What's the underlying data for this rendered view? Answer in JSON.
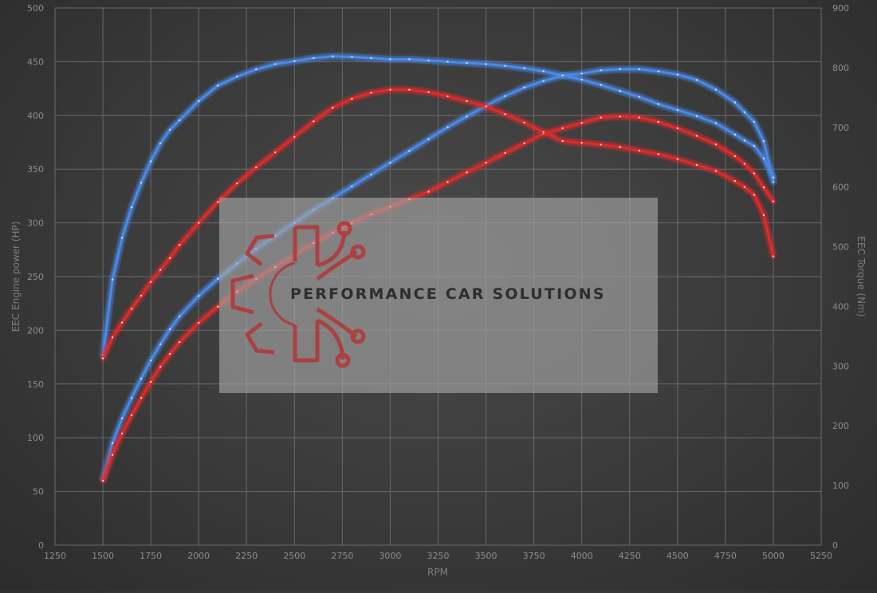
{
  "chart_data": {
    "type": "line",
    "xlabel": "RPM",
    "ylabel_left": "EEC Engine power (HP)",
    "ylabel_right": "EEC Torque (Nm)",
    "xlim": [
      1250,
      5250
    ],
    "ylim_left": [
      0,
      500
    ],
    "ylim_right": [
      0,
      900
    ],
    "x_ticks": [
      1250,
      1500,
      1750,
      2000,
      2250,
      2500,
      2750,
      3000,
      3250,
      3500,
      3750,
      4000,
      4250,
      4500,
      4750,
      5000,
      5250
    ],
    "y_ticks_left": [
      0,
      50,
      100,
      150,
      200,
      250,
      300,
      350,
      400,
      450,
      500
    ],
    "y_ticks_right": [
      0,
      100,
      200,
      300,
      400,
      500,
      600,
      700,
      800,
      900
    ],
    "grid": true,
    "series": [
      {
        "axis": "left",
        "color": "#4a8ae8",
        "x": [
          1500,
          1550,
          1600,
          1650,
          1700,
          1750,
          1800,
          1850,
          1900,
          2000,
          2100,
          2200,
          2300,
          2400,
          2500,
          2600,
          2700,
          2800,
          2900,
          3000,
          3100,
          3200,
          3300,
          3400,
          3500,
          3600,
          3700,
          3800,
          3900,
          4000,
          4100,
          4200,
          4300,
          4400,
          4500,
          4600,
          4700,
          4800,
          4850,
          4900,
          4950,
          5000
        ],
        "y": [
          62,
          95,
          118,
          137,
          155,
          172,
          187,
          201,
          213,
          232,
          248,
          262,
          276,
          288,
          300,
          312,
          323,
          334,
          345,
          356,
          367,
          378,
          389,
          399,
          409,
          418,
          426,
          432,
          437,
          439,
          442,
          443,
          443,
          441,
          438,
          433,
          424,
          412,
          403,
          394,
          376,
          338
        ]
      },
      {
        "axis": "left",
        "color": "#e02a2a",
        "x": [
          1500,
          1550,
          1600,
          1650,
          1700,
          1750,
          1800,
          1850,
          1900,
          2000,
          2100,
          2200,
          2300,
          2400,
          2500,
          2600,
          2700,
          2800,
          2900,
          3000,
          3100,
          3200,
          3300,
          3400,
          3500,
          3600,
          3700,
          3800,
          3900,
          4000,
          4100,
          4200,
          4300,
          4400,
          4500,
          4600,
          4700,
          4800,
          4850,
          4900,
          4950,
          5000
        ],
        "y": [
          60,
          84,
          104,
          121,
          137,
          152,
          166,
          178,
          189,
          207,
          222,
          236,
          248,
          259,
          270,
          281,
          291,
          300,
          308,
          315,
          322,
          329,
          338,
          347,
          356,
          365,
          374,
          383,
          388,
          393,
          398,
          399,
          398,
          394,
          388,
          381,
          373,
          362,
          355,
          346,
          333,
          320
        ]
      },
      {
        "axis": "right",
        "color": "#4a8ae8",
        "x": [
          1500,
          1550,
          1600,
          1650,
          1700,
          1750,
          1800,
          1850,
          1900,
          2000,
          2100,
          2200,
          2300,
          2400,
          2500,
          2600,
          2700,
          2800,
          2900,
          3000,
          3100,
          3200,
          3300,
          3400,
          3500,
          3600,
          3700,
          3800,
          3900,
          4000,
          4100,
          4200,
          4300,
          4400,
          4500,
          4600,
          4700,
          4800,
          4850,
          4900,
          4950,
          5000
        ],
        "y": [
          318,
          445,
          515,
          566,
          607,
          643,
          673,
          696,
          712,
          744,
          770,
          785,
          797,
          806,
          811,
          816,
          819,
          818,
          816,
          814,
          814,
          812,
          810,
          808,
          806,
          803,
          799,
          794,
          787,
          780,
          771,
          761,
          751,
          739,
          729,
          719,
          707,
          688,
          678,
          669,
          648,
          616
        ]
      },
      {
        "axis": "right",
        "color": "#e02a2a",
        "x": [
          1500,
          1550,
          1600,
          1650,
          1700,
          1750,
          1800,
          1850,
          1900,
          2000,
          2100,
          2200,
          2300,
          2400,
          2500,
          2600,
          2700,
          2800,
          2900,
          3000,
          3100,
          3200,
          3300,
          3400,
          3500,
          3600,
          3700,
          3800,
          3900,
          4000,
          4100,
          4200,
          4300,
          4400,
          4500,
          4600,
          4700,
          4800,
          4850,
          4900,
          4950,
          5000
        ],
        "y": [
          313,
          348,
          373,
          396,
          418,
          441,
          461,
          481,
          503,
          540,
          575,
          606,
          633,
          658,
          684,
          710,
          733,
          748,
          758,
          763,
          763,
          759,
          752,
          744,
          735,
          722,
          708,
          692,
          677,
          674,
          671,
          667,
          661,
          655,
          647,
          637,
          627,
          610,
          600,
          587,
          553,
          484
        ]
      }
    ]
  },
  "watermark": {
    "text": "PERFORMANCE CAR SOLUTIONS",
    "icon": "gear-circuit-logo"
  },
  "colors": {
    "background": "#3a3a3a",
    "grid": "#6a6a6a",
    "power_line": "#4a8ae8",
    "torque_line": "#e02a2a",
    "watermark_box": "#9a9a9a",
    "logo": "#b03a3a"
  }
}
